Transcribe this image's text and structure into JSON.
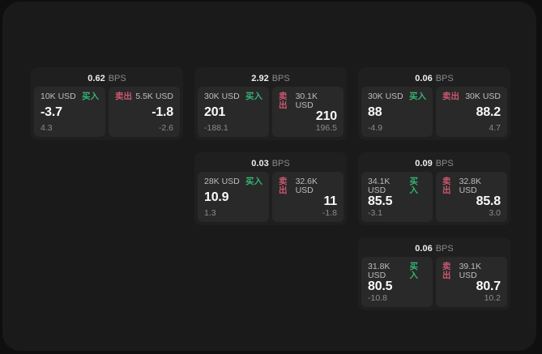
{
  "labels": {
    "bps_unit": "BPS",
    "buy": "买入",
    "sell": "卖出"
  },
  "colors": {
    "buy-green": "#36b374",
    "sell-red": "#c9586f",
    "panel-bg": "#1a1a1a",
    "card-bg": "#1f1f1f",
    "tile-bg": "#292929"
  },
  "cards": [
    {
      "bps": "0.62",
      "buy": {
        "size": "10K USD",
        "value": "-3.7",
        "sub": "4.3"
      },
      "sell": {
        "size": "5.5K USD",
        "value": "-1.8",
        "sub": "-2.6"
      }
    },
    {
      "bps": "2.92",
      "buy": {
        "size": "30K USD",
        "value": "201",
        "sub": "-188.1"
      },
      "sell": {
        "size": "30.1K USD",
        "value": "210",
        "sub": "196.5"
      }
    },
    {
      "bps": "0.06",
      "buy": {
        "size": "30K USD",
        "value": "88",
        "sub": "-4.9"
      },
      "sell": {
        "size": "30K USD",
        "value": "88.2",
        "sub": "4.7"
      }
    },
    {
      "bps": "0.03",
      "buy": {
        "size": "28K USD",
        "value": "10.9",
        "sub": "1.3"
      },
      "sell": {
        "size": "32.6K USD",
        "value": "11",
        "sub": "-1.8"
      }
    },
    {
      "bps": "0.09",
      "buy": {
        "size": "34.1K USD",
        "value": "85.5",
        "sub": "-3.1"
      },
      "sell": {
        "size": "32.8K USD",
        "value": "85.8",
        "sub": "3.0"
      }
    },
    {
      "bps": "0.06",
      "buy": {
        "size": "31.8K USD",
        "value": "80.5",
        "sub": "-10.8"
      },
      "sell": {
        "size": "39.1K USD",
        "value": "80.7",
        "sub": "10.2"
      }
    }
  ]
}
